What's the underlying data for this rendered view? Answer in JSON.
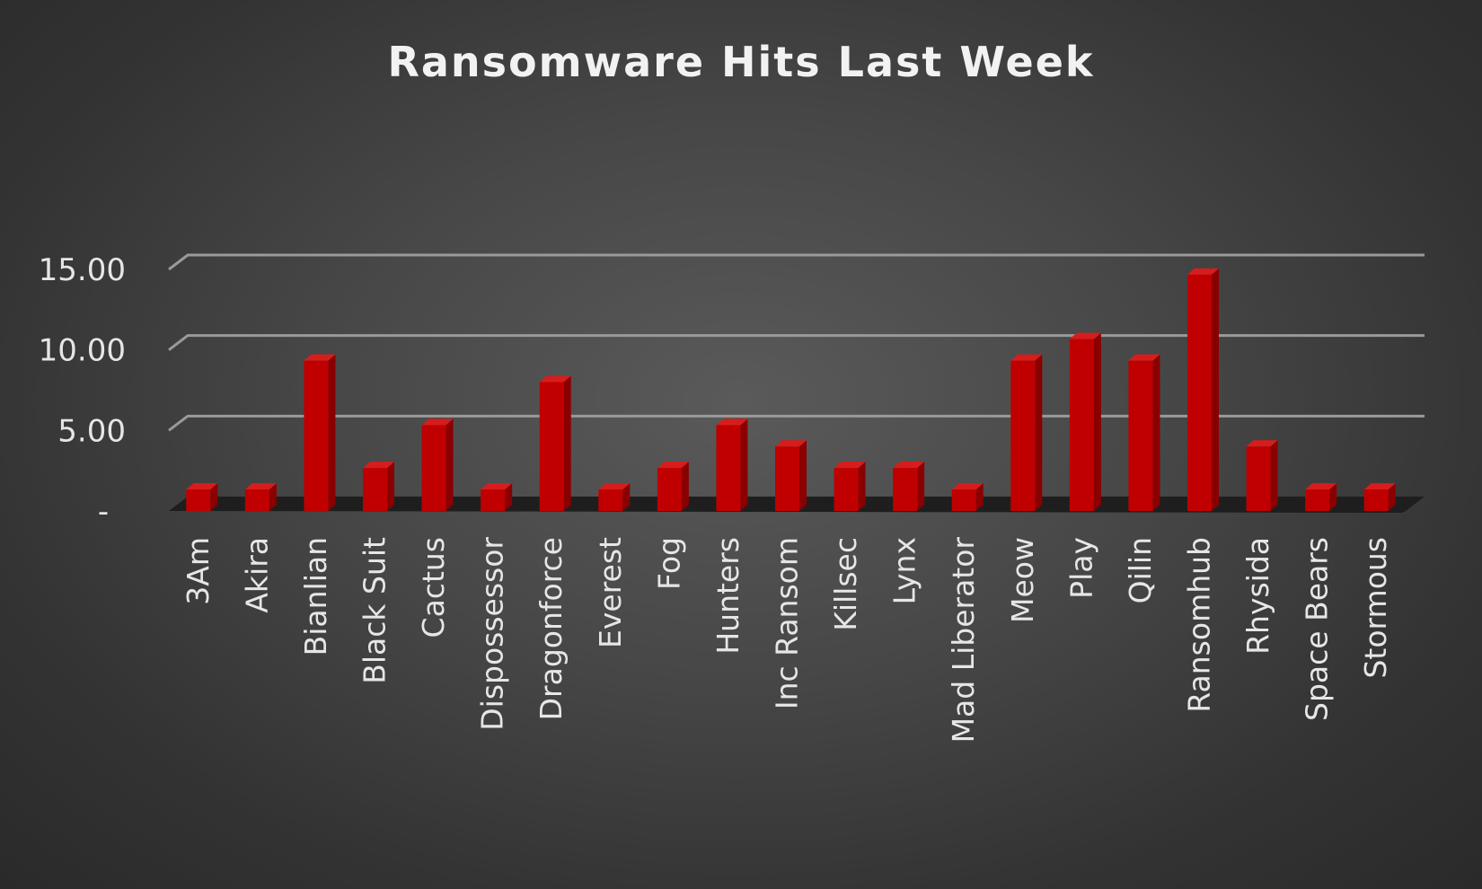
{
  "chart_data": {
    "type": "bar",
    "title": "Ransomware Hits Last Week",
    "xlabel": "",
    "ylabel": "",
    "ylim": [
      0,
      15
    ],
    "y_ticks": [
      "-",
      "5.00",
      "10.00",
      "15.00"
    ],
    "y_tick_values": [
      0,
      5,
      10,
      15
    ],
    "grid": true,
    "legend": "none",
    "bar_style": "3d-column",
    "categories": [
      "3Am",
      "Akira",
      "Bianlian",
      "Black Suit",
      "Cactus",
      "Dispossessor",
      "Dragonforce",
      "Everest",
      "Fog",
      "Hunters",
      "Inc Ransom",
      "Killsec",
      "Lynx",
      "Mad Liberator",
      "Meow",
      "Play",
      "Qilin",
      "Ransomhub",
      "Rhysida",
      "Space Bears",
      "Stormous"
    ],
    "values": [
      1.33,
      1.33,
      9.33,
      2.67,
      5.33,
      1.33,
      8.0,
      1.33,
      2.67,
      5.33,
      4.0,
      2.67,
      2.67,
      1.33,
      9.33,
      10.67,
      9.33,
      14.67,
      4.0,
      1.33,
      1.33
    ],
    "colors": {
      "bar_front": "#c00000",
      "bar_top": "#d81c1c",
      "bar_side": "#8a0000",
      "floor": "#1e1e1e",
      "grid": "#9a9a9a",
      "text": "#e6e6e6",
      "title": "#f2f2f2"
    }
  }
}
